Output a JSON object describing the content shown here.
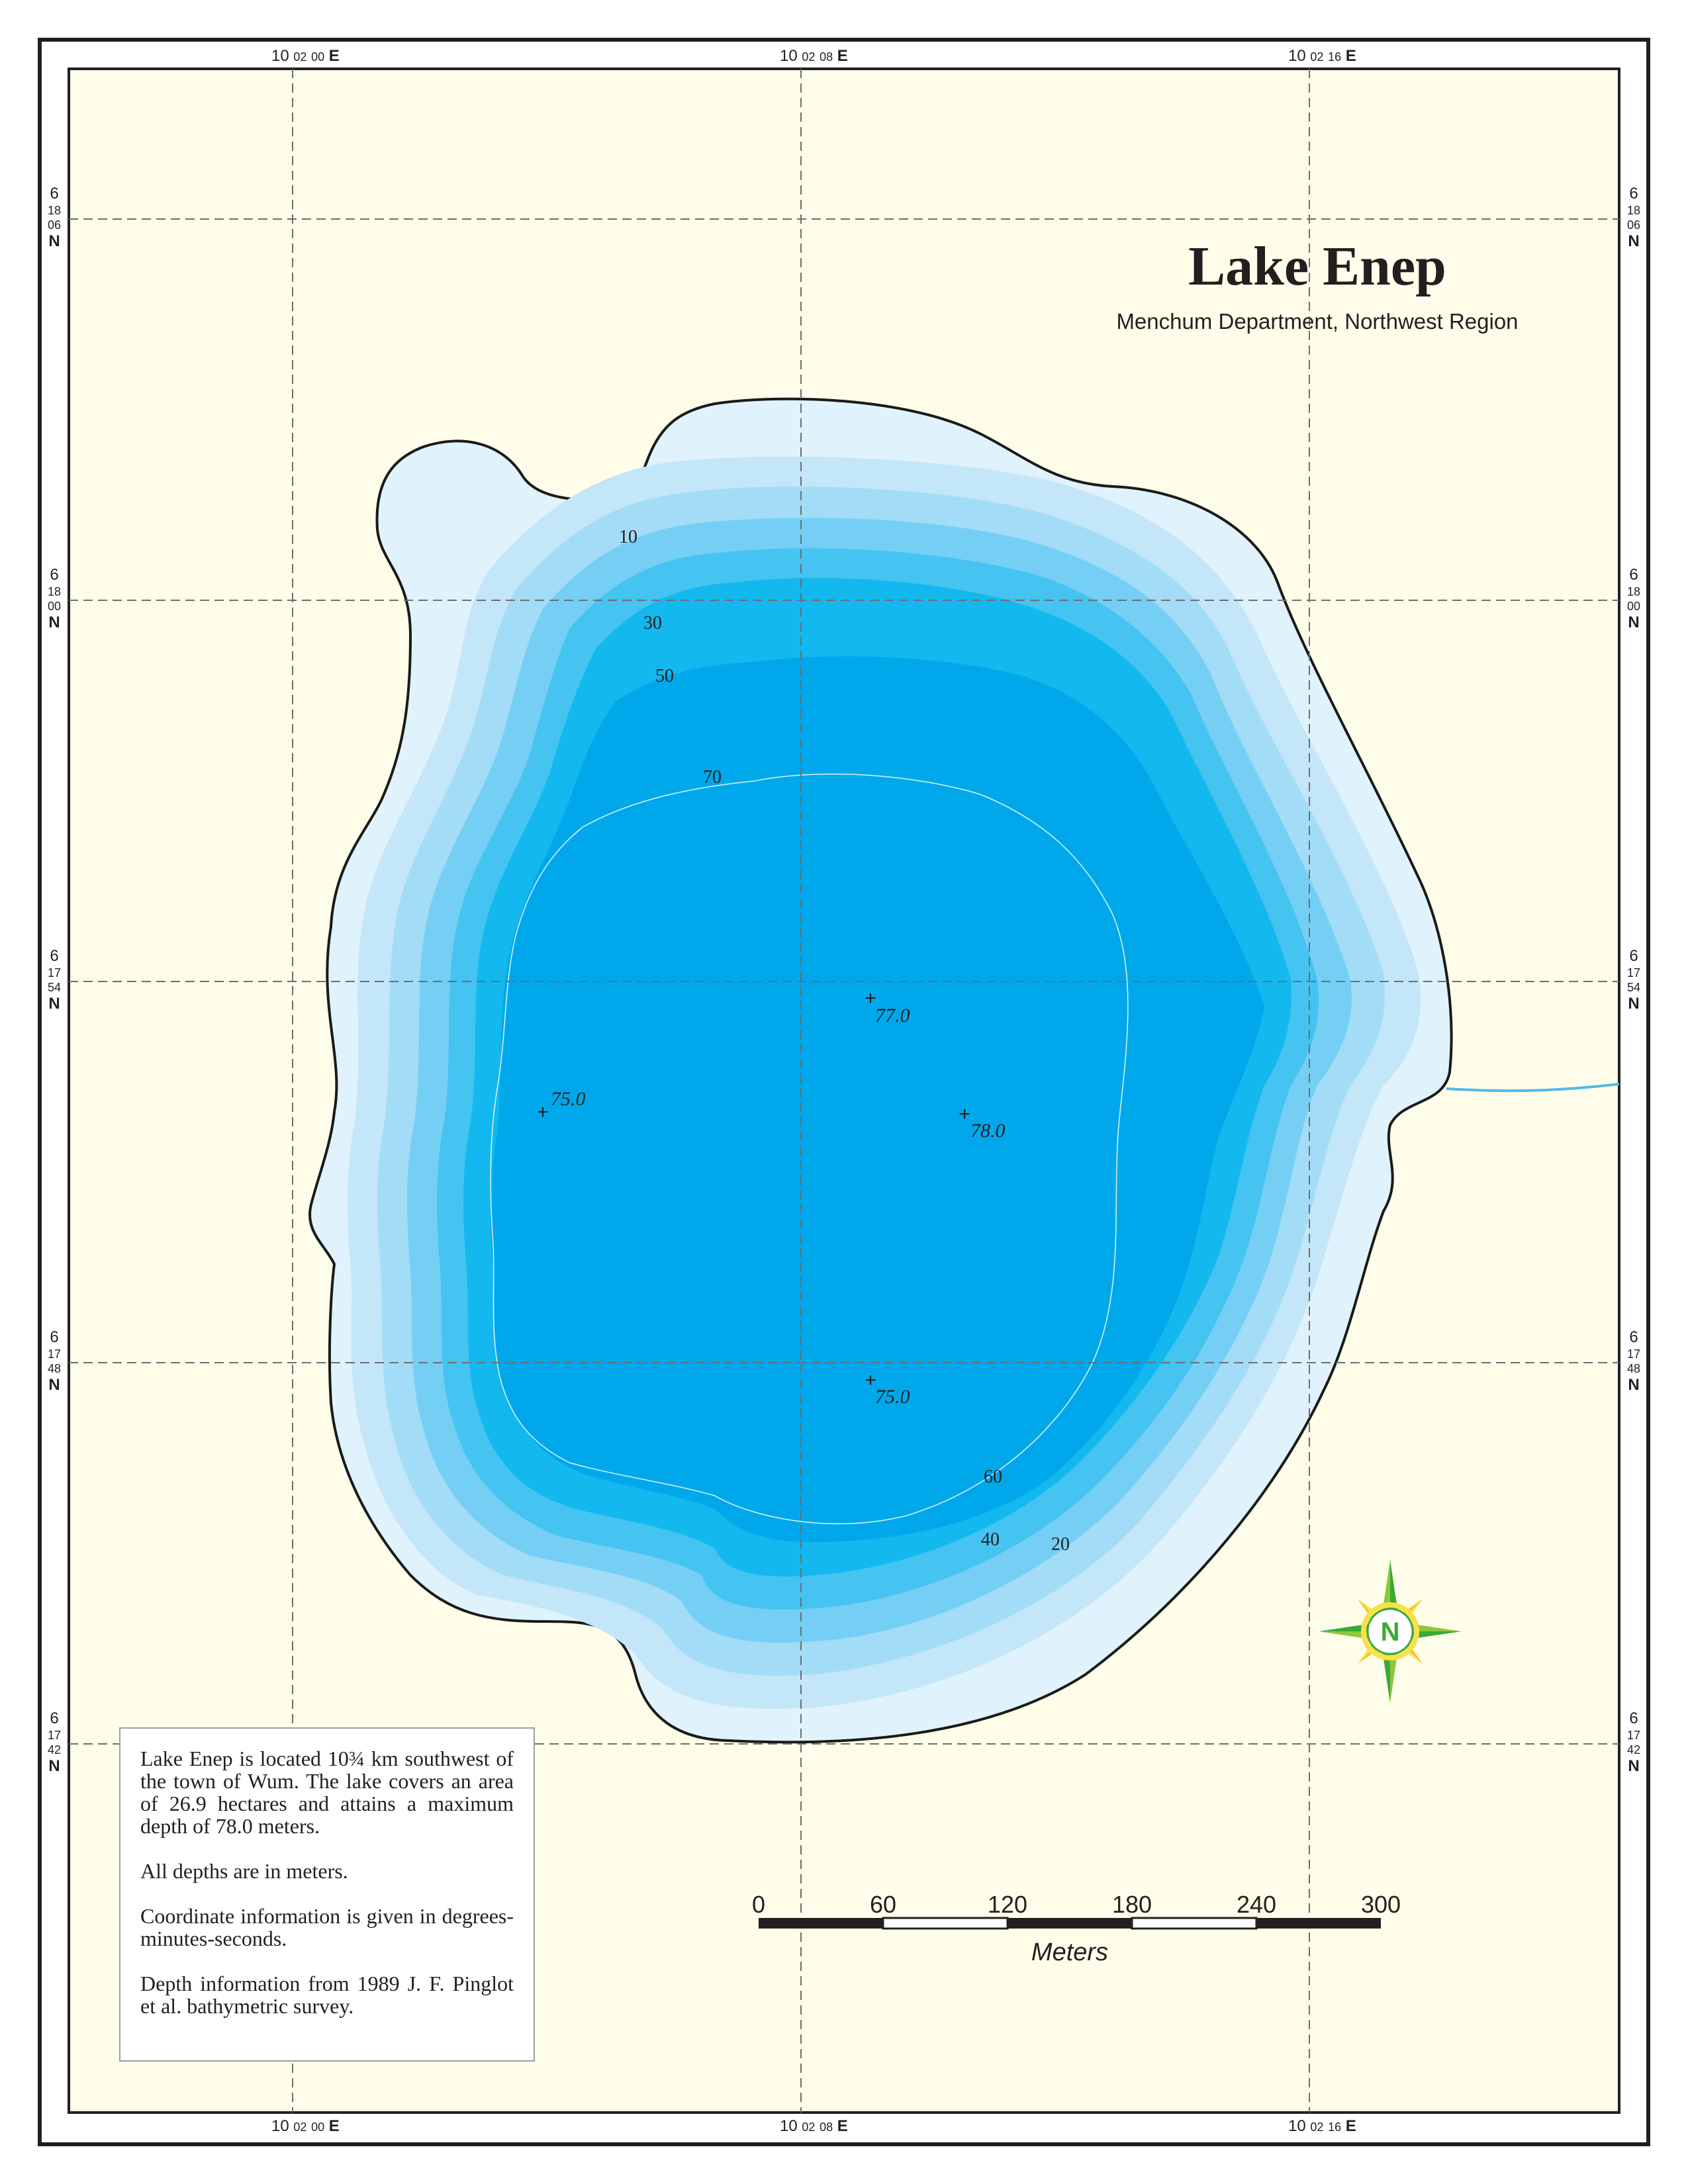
{
  "map": {
    "title": "Lake Enep",
    "subtitle": "Menchum Department, Northwest Region"
  },
  "coordinates": {
    "longitudes": [
      {
        "deg": "10",
        "min": "02",
        "sec": "00",
        "hemi": "E"
      },
      {
        "deg": "10",
        "min": "02",
        "sec": "08",
        "hemi": "E"
      },
      {
        "deg": "10",
        "min": "02",
        "sec": "16",
        "hemi": "E"
      }
    ],
    "latitudes": [
      {
        "deg": "6",
        "min": "18",
        "sec": "06",
        "hemi": "N"
      },
      {
        "deg": "6",
        "min": "18",
        "sec": "00",
        "hemi": "N"
      },
      {
        "deg": "6",
        "min": "17",
        "sec": "54",
        "hemi": "N"
      },
      {
        "deg": "6",
        "min": "17",
        "sec": "48",
        "hemi": "N"
      },
      {
        "deg": "6",
        "min": "17",
        "sec": "42",
        "hemi": "N"
      }
    ]
  },
  "contours": {
    "labels": [
      "10",
      "30",
      "50",
      "70",
      "60",
      "40",
      "20"
    ]
  },
  "soundings": [
    "77.0",
    "75.0",
    "78.0",
    "75.0"
  ],
  "info": {
    "paragraphs": [
      "Lake Enep is located 10¾ km southwest of the town of Wum. The lake covers an area of 26.9 hectares and attains a maximum depth of 78.0 meters.",
      "All depths are in meters.",
      "Coordinate information is given in degrees-minutes-seconds.",
      "Depth information from 1989 J. F. Pinglot et al. bathymetric survey."
    ]
  },
  "scale_bar": {
    "ticks": [
      "0",
      "60",
      "120",
      "180",
      "240",
      "300"
    ],
    "unit": "Meters"
  },
  "compass": {
    "letter": "N",
    "icon": "compass-rose-icon"
  },
  "colors": {
    "land": "#fdfde9",
    "water_0": "#e0f2fb",
    "water_10": "#c3e6f9",
    "water_20": "#a3dcf7",
    "water_30": "#75cff5",
    "water_40": "#45c3f1",
    "water_50": "#12b8ee",
    "water_60": "#00aeef",
    "water_deep": "#00a8eb",
    "stream": "#54b8e8",
    "shoreline": "#1a1a1a"
  }
}
